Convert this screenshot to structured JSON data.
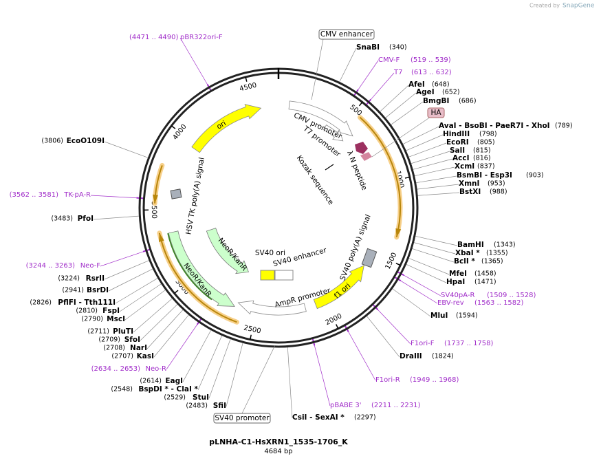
{
  "header": {
    "credit": "Created by",
    "brand": "SnapGene"
  },
  "map": {
    "name": "pLNHA-C1-HsXRN1_1535-1706_K",
    "length": "4684 bp",
    "ticks": [
      "500",
      "1000",
      "1500",
      "2000",
      "2500",
      "3000",
      "3500",
      "4000",
      "4500"
    ],
    "features": {
      "cmv_enhancer": "CMV enhancer",
      "cmv_promoter": "CMV promoter",
      "t7_promoter": "T7 promoter",
      "lambda_n": "λ N peptide",
      "kozak": "Kozak sequence",
      "ha": "HA",
      "sv40_polya": "SV40 poly(A) signal",
      "f1_ori": "f1 ori",
      "ampr_promoter": "AmpR promoter",
      "sv40_ori": "SV40 ori",
      "sv40_enhancer": "SV40 enhancer",
      "neor_inner": "NeoR/KanR",
      "neor_outer": "NeoR/KanR",
      "hsv_tk": "HSV TK poly(A) signal",
      "ori": "ori",
      "sv40_promoter": "SV40 promoter"
    },
    "enzymes": [
      {
        "name": "SnaBI",
        "pos": "(340)"
      },
      {
        "name": "AfeI",
        "pos": "(648)"
      },
      {
        "name": "AgeI",
        "pos": "(652)"
      },
      {
        "name": "BmgBI",
        "pos": "(686)"
      },
      {
        "name": "AvaI - BsoBI - PaeR7I - XhoI",
        "pos": "(789)"
      },
      {
        "name": "HindIII",
        "pos": "(798)"
      },
      {
        "name": "EcoRI",
        "pos": "(805)"
      },
      {
        "name": "SalI",
        "pos": "(815)"
      },
      {
        "name": "AccI",
        "pos": "(816)"
      },
      {
        "name": "XcmI",
        "pos": "(837)"
      },
      {
        "name": "BsmBI - Esp3I",
        "pos": "(903)"
      },
      {
        "name": "XmnI",
        "pos": "(953)"
      },
      {
        "name": "BstXI",
        "pos": "(988)"
      },
      {
        "name": "BamHI",
        "pos": "(1343)"
      },
      {
        "name": "XbaI *",
        "pos": "(1355)"
      },
      {
        "name": "BclI *",
        "pos": "(1365)"
      },
      {
        "name": "MfeI",
        "pos": "(1458)"
      },
      {
        "name": "HpaI",
        "pos": "(1471)"
      },
      {
        "name": "MluI",
        "pos": "(1594)"
      },
      {
        "name": "DraIII",
        "pos": "(1824)"
      },
      {
        "name": "CsiI - SexAI *",
        "pos": "(2297)"
      },
      {
        "name": "SfiI",
        "pos": "(2483)"
      },
      {
        "name": "StuI",
        "pos": "(2529)"
      },
      {
        "name": "BspDI * - ClaI *",
        "pos": "(2548)"
      },
      {
        "name": "EagI",
        "pos": "(2614)"
      },
      {
        "name": "KasI",
        "pos": "(2707)"
      },
      {
        "name": "NarI",
        "pos": "(2708)"
      },
      {
        "name": "SfoI",
        "pos": "(2709)"
      },
      {
        "name": "PluTI",
        "pos": "(2711)"
      },
      {
        "name": "MscI",
        "pos": "(2790)"
      },
      {
        "name": "FspI",
        "pos": "(2810)"
      },
      {
        "name": "PflFI - Tth111I",
        "pos": "(2826)"
      },
      {
        "name": "BsrDI",
        "pos": "(2941)"
      },
      {
        "name": "RsrII",
        "pos": "(3224)"
      },
      {
        "name": "PfoI",
        "pos": "(3483)"
      },
      {
        "name": "EcoO109I",
        "pos": "(3806)"
      }
    ],
    "primers": [
      {
        "name": "pBR322ori-F",
        "pos": "(4471 .. 4490)"
      },
      {
        "name": "CMV-F",
        "pos": "(519 .. 539)"
      },
      {
        "name": "T7",
        "pos": "(613 .. 632)"
      },
      {
        "name": "SV40pA-R",
        "pos": "(1509 .. 1528)"
      },
      {
        "name": "EBV-rev",
        "pos": "(1563 .. 1582)"
      },
      {
        "name": "F1ori-F",
        "pos": "(1737 .. 1758)"
      },
      {
        "name": "F1ori-R",
        "pos": "(1949 .. 1968)"
      },
      {
        "name": "pBABE 3'",
        "pos": "(2211 .. 2231)"
      },
      {
        "name": "Neo-R",
        "pos": "(2634 .. 2653)"
      },
      {
        "name": "Neo-F",
        "pos": "(3244 .. 3263)"
      },
      {
        "name": "TK-pA-R",
        "pos": "(3562 .. 3581)"
      }
    ]
  }
}
